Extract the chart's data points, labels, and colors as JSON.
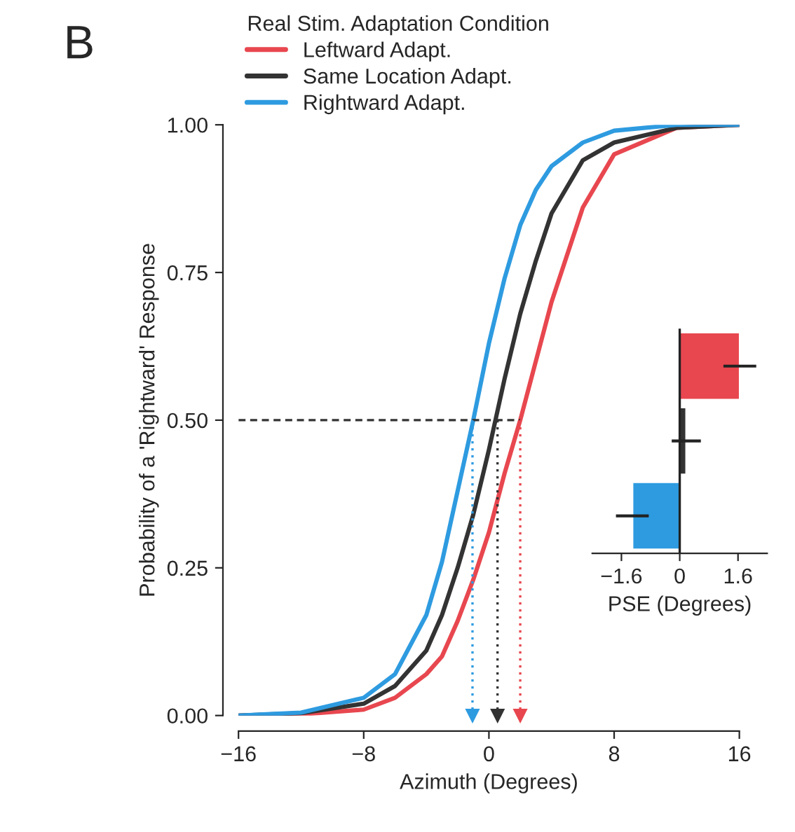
{
  "chart_data": [
    {
      "type": "line",
      "xlabel": "Azimuth (Degrees)",
      "ylabel": "Probability of a 'Rightward' Response",
      "legend_title": "Real Stim. Adaptation Condition",
      "legend": "top left",
      "annotations": [
        "B"
      ],
      "xlim": [
        -16,
        16
      ],
      "xticks": [
        {
          "value": -16,
          "label": "−16"
        },
        {
          "value": -8,
          "label": "−8"
        },
        0,
        8,
        16
      ],
      "ylim": [
        0,
        1
      ],
      "yticks": [
        {
          "value": 0,
          "label": "0.00"
        },
        {
          "value": 0.25,
          "label": "0.25"
        },
        {
          "value": 0.5,
          "label": "0.50"
        },
        {
          "value": 0.75,
          "label": "0.75"
        },
        {
          "value": 1,
          "label": "1.00"
        }
      ],
      "x": [
        -16,
        -12,
        -8,
        -6,
        -4,
        -3,
        -2,
        -1,
        0,
        1,
        2,
        3,
        4,
        6,
        8,
        12,
        16
      ],
      "series": [
        {
          "name": "Leftward Adapt.",
          "color": "#e8474f",
          "values": [
            0,
            0.002,
            0.01,
            0.03,
            0.07,
            0.1,
            0.16,
            0.23,
            0.31,
            0.41,
            0.5,
            0.6,
            0.7,
            0.86,
            0.95,
            0.995,
            1
          ]
        },
        {
          "name": "Same Location Adapt.",
          "color": "#333333",
          "values": [
            0,
            0.004,
            0.02,
            0.05,
            0.11,
            0.17,
            0.25,
            0.34,
            0.45,
            0.57,
            0.68,
            0.77,
            0.85,
            0.94,
            0.97,
            0.995,
            1
          ]
        },
        {
          "name": "Rightward Adapt.",
          "color": "#2e9be0",
          "values": [
            0,
            0.005,
            0.03,
            0.07,
            0.17,
            0.26,
            0.38,
            0.5,
            0.63,
            0.74,
            0.83,
            0.89,
            0.93,
            0.97,
            0.99,
            1,
            1
          ]
        }
      ],
      "ref_lines": [
        {
          "axis": "y",
          "value": 0.5,
          "color": "#333333",
          "line_style": "dashed"
        },
        {
          "axis": "x",
          "value": -1.05,
          "color": "#2e9be0",
          "line_style": "dotted"
        },
        {
          "axis": "x",
          "value": 0.55,
          "color": "#333333",
          "line_style": "dotted"
        },
        {
          "axis": "x",
          "value": 2.0,
          "color": "#e8474f",
          "line_style": "dotted"
        }
      ]
    },
    {
      "type": "bar",
      "orientation": "horizontal",
      "xlabel": "PSE (Degrees)",
      "categories": [
        null,
        null,
        null
      ],
      "values": [
        1.65,
        0.18,
        -1.3
      ],
      "errors": [
        0.45,
        0.4,
        0.45
      ],
      "colors": [
        "#e8474f",
        "#333333",
        "#2e9be0"
      ],
      "xlim": [
        -2.4,
        2.4
      ],
      "xticks": [
        {
          "value": -1.6,
          "label": "−1.6"
        },
        0,
        1.6
      ],
      "tick_labels": "x"
    }
  ]
}
